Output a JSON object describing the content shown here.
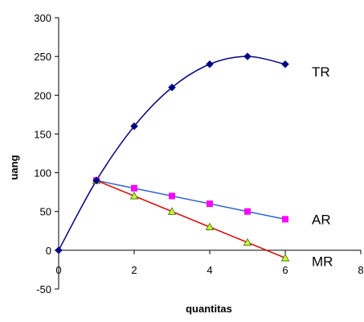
{
  "chart_data": {
    "type": "line",
    "title": "",
    "xlabel": "quantitas",
    "ylabel": "uang",
    "xlim": [
      0,
      8
    ],
    "ylim": [
      -50,
      300
    ],
    "x_ticks": [
      "0",
      "2",
      "4",
      "6",
      "8"
    ],
    "y_ticks": [
      "-50",
      "0",
      "50",
      "100",
      "150",
      "200",
      "250",
      "300"
    ],
    "grid": false,
    "legend": "none",
    "series": [
      {
        "name": "TR",
        "color": "#000080",
        "marker": "diamond",
        "smooth": true,
        "x": [
          0,
          1,
          2,
          3,
          4,
          5,
          6
        ],
        "y": [
          0,
          90,
          160,
          210,
          240,
          250,
          240
        ]
      },
      {
        "name": "AR",
        "color": "#3366cc",
        "marker_color": "#ff00ff",
        "marker": "square",
        "smooth": false,
        "x": [
          1,
          2,
          3,
          4,
          5,
          6
        ],
        "y": [
          90,
          80,
          70,
          60,
          50,
          40
        ]
      },
      {
        "name": "MR",
        "color": "#dd0000",
        "marker_color": "#ccff33",
        "marker_stroke": "#336600",
        "marker": "triangle",
        "smooth": false,
        "x": [
          1,
          2,
          3,
          4,
          5,
          6
        ],
        "y": [
          90,
          70,
          50,
          30,
          10,
          -10
        ]
      }
    ]
  }
}
